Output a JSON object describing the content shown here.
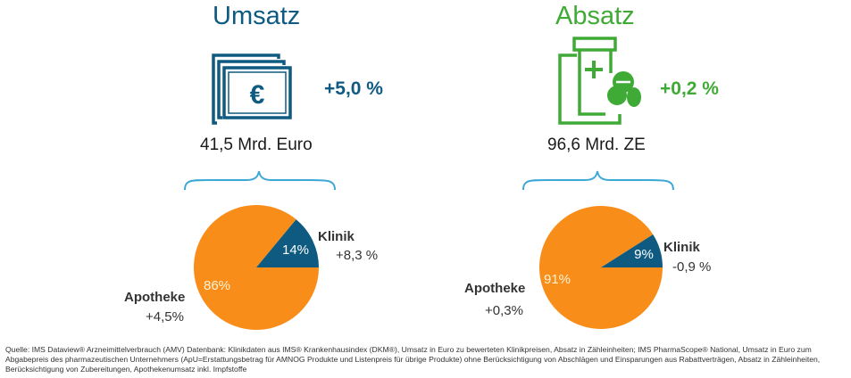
{
  "colors": {
    "brand_blue": "#0e5a80",
    "brand_green": "#3faa35",
    "pie_orange": "#f98d1a",
    "bracket": "#3da7d6"
  },
  "left": {
    "title": "Umsatz",
    "growth": "+5,0 %",
    "total": "41,5 Mrd. Euro",
    "icon": "euro-banknotes-icon",
    "segments": {
      "klinik_label": "Klinik",
      "klinik_change": "+8,3 %",
      "apotheke_label": "Apotheke",
      "apotheke_change": "+4,5%"
    }
  },
  "right": {
    "title": "Absatz",
    "growth": "+0,2 %",
    "total": "96,6 Mrd. ZE",
    "icon": "medicine-pills-icon",
    "segments": {
      "klinik_label": "Klinik",
      "klinik_change": "-0,9 %",
      "apotheke_label": "Apotheke",
      "apotheke_change": "+0,3%"
    }
  },
  "chart_data": [
    {
      "type": "pie",
      "categories": [
        "Apotheke",
        "Klinik"
      ],
      "values": [
        86,
        14
      ],
      "value_labels": [
        "86%",
        "14%"
      ],
      "colors": [
        "#f98d1a",
        "#0e5a80"
      ]
    },
    {
      "type": "pie",
      "categories": [
        "Apotheke",
        "Klinik"
      ],
      "values": [
        91,
        9
      ],
      "value_labels": [
        "91%",
        "9%"
      ],
      "colors": [
        "#f98d1a",
        "#0e5a80"
      ]
    }
  ],
  "footnote": "Quelle: IMS Dataview® Arzneimittelverbrauch (AMV) Datenbank: Klinikdaten aus IMS® Krankenhausindex (DKM®), Umsatz in Euro zu bewerteten Klinikpreisen, Absatz in Zähleinheiten; IMS PharmaScope® National, Umsatz in Euro zum Abgabepreis des pharmazeutischen Unternehmers (ApU=Erstattungsbetrag für AMNOG Produkte und Listenpreis für übrige Produkte) ohne Berücksichtigung von Abschlägen und Einsparungen aus Rabattverträgen, Absatz in Zähleinheiten, Berücksichtigung von Zubereitungen, Apothekenumsatz inkl. Impfstoffe"
}
